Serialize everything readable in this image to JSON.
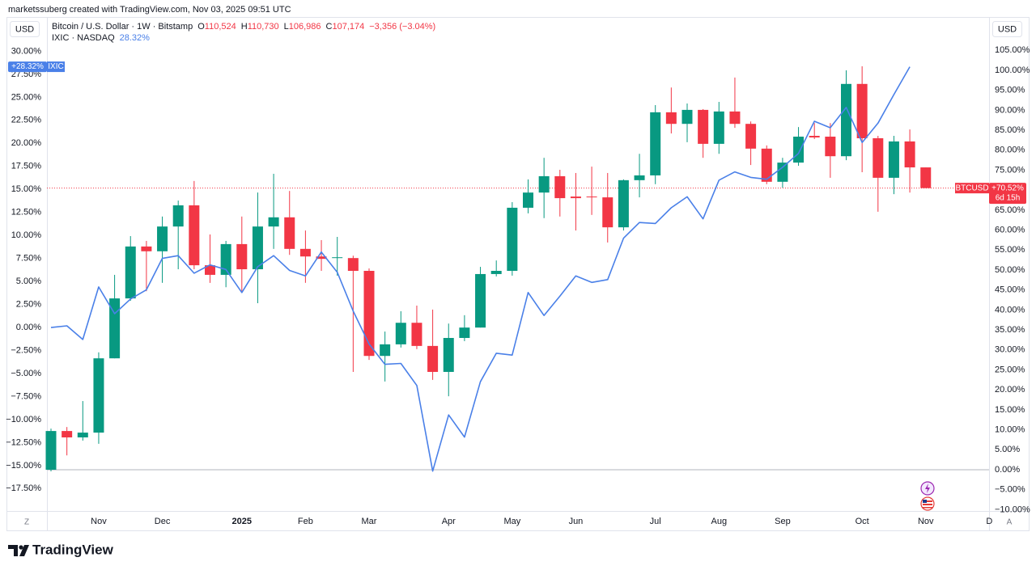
{
  "header": "marketssuberg created with TradingView.com, Nov 03, 2025 09:51 UTC",
  "watermark": "TradingView",
  "chart_data": {
    "type": "candlestick",
    "left_scale_label": "USD",
    "right_scale_label": "USD",
    "corner_left": "Z",
    "corner_right": "A",
    "grid": false,
    "categories": [
      null,
      null,
      null,
      "Nov",
      null,
      null,
      null,
      "Dec",
      null,
      null,
      null,
      null,
      "2025",
      null,
      null,
      null,
      "Feb",
      null,
      null,
      null,
      "Mar",
      null,
      null,
      null,
      null,
      "Apr",
      null,
      null,
      null,
      "May",
      null,
      null,
      null,
      "Jun",
      null,
      null,
      null,
      null,
      "Jul",
      null,
      null,
      null,
      "Aug",
      null,
      null,
      null,
      "Sep",
      null,
      null,
      null,
      null,
      "Oct",
      null,
      null,
      null,
      "Nov",
      null,
      null,
      null,
      "D"
    ],
    "ohlc": {
      "name": "Bitcoin / U.S. Dollar · 1W · Bitstamp",
      "axis": "y2",
      "up_color": "#089981",
      "down_color": "#f23645",
      "legend_fields": [
        {
          "key": "O",
          "value": "110,524"
        },
        {
          "key": "H",
          "value": "110,730"
        },
        {
          "key": "L",
          "value": "106,986"
        },
        {
          "key": "C",
          "value": "107,174"
        }
      ],
      "change": "−3,356 (−3.04%)",
      "tag": "BTCUSD",
      "last_label": "+70.52%",
      "countdown": "6d 15h",
      "open": [
        0,
        9.7,
        8.1,
        9.3,
        27.9,
        42.9,
        55.9,
        54.7,
        60.9,
        66.2,
        51.2,
        48.8,
        56.5,
        50.2,
        60.9,
        63.2,
        55.3,
        53.4,
        53.0,
        53.0,
        49.8,
        28.5,
        31.4,
        36.8,
        31.0,
        24.5,
        33.0,
        35.6,
        49.0,
        49.8,
        65.6,
        69.4,
        73.5,
        68.4,
        68.4,
        68.2,
        60.7,
        72.5,
        73.7,
        89.5,
        86.6,
        90.1,
        81.6,
        89.7,
        86.6,
        80.4,
        72.1,
        76.9,
        83.6,
        83.4,
        78.5,
        96.6,
        83.0,
        73.1,
        82.2,
        75.7,
        null,
        null,
        null,
        null
      ],
      "high": [
        10.3,
        10.7,
        17.2,
        29.4,
        48.8,
        58.5,
        57.3,
        63.4,
        67.4,
        72.3,
        58.9,
        57.3,
        63.4,
        69.4,
        74.1,
        69.8,
        59.9,
        57.5,
        58.3,
        53.6,
        50.4,
        34.6,
        39.7,
        41.1,
        40.1,
        36.6,
        38.7,
        50.8,
        52.4,
        67.0,
        72.7,
        78.1,
        75.1,
        74.3,
        75.9,
        74.3,
        72.7,
        79.1,
        91.3,
        95.7,
        91.7,
        90.3,
        92.1,
        98.2,
        87.2,
        81.2,
        78.1,
        85.8,
        86.8,
        86.8,
        100.0,
        101.0,
        83.6,
        83.6,
        85.2,
        75.7,
        null,
        null,
        null,
        null
      ],
      "low": [
        -0.4,
        3.6,
        7.3,
        6.5,
        27.9,
        42.3,
        44.7,
        46.8,
        50.2,
        50.2,
        46.8,
        45.7,
        44.7,
        41.7,
        55.3,
        53.8,
        46.8,
        49.8,
        48.6,
        24.5,
        27.5,
        22.1,
        30.6,
        30.2,
        22.5,
        18.4,
        32.2,
        35.6,
        48.4,
        48.6,
        64.2,
        63.0,
        63.4,
        59.9,
        63.8,
        56.9,
        59.9,
        68.2,
        71.5,
        84.2,
        82.0,
        78.1,
        79.1,
        85.6,
        76.3,
        71.5,
        70.6,
        76.1,
        82.8,
        73.1,
        77.5,
        74.5,
        64.6,
        69.0,
        69.4,
        70.52,
        null,
        null,
        null,
        null
      ],
      "close": [
        9.7,
        8.1,
        9.3,
        27.9,
        42.9,
        55.9,
        54.7,
        60.9,
        66.2,
        51.2,
        48.8,
        56.5,
        50.2,
        60.9,
        63.2,
        55.3,
        53.4,
        52.8,
        53.2,
        49.8,
        28.5,
        31.4,
        36.8,
        31.0,
        24.5,
        33.0,
        35.6,
        49.0,
        49.8,
        65.6,
        69.4,
        73.5,
        68.0,
        68.0,
        68.2,
        60.7,
        72.5,
        73.7,
        89.5,
        86.6,
        90.1,
        81.6,
        89.7,
        86.6,
        80.4,
        72.1,
        76.9,
        83.4,
        83.2,
        78.5,
        96.6,
        83.0,
        73.1,
        82.2,
        75.7,
        70.52,
        null,
        null,
        null,
        null
      ]
    },
    "series": [
      {
        "name": "IXIC · NASDAQ",
        "value_label": "28.32%",
        "tag": "IXIC",
        "last_label": "+28.32%",
        "color": "#4a80e8",
        "axis": "y",
        "values": [
          0,
          0.18,
          -1.3,
          4.4,
          1.5,
          3.1,
          4.1,
          7.5,
          7.8,
          5.9,
          6.8,
          6.3,
          3.8,
          6.6,
          7.8,
          6.2,
          5.6,
          8.2,
          6.0,
          1.8,
          -1.8,
          -4.0,
          -3.9,
          -6.3,
          -15.6,
          -9.5,
          -11.9,
          -5.9,
          -2.8,
          -3.0,
          3.8,
          1.3,
          3.4,
          5.6,
          4.9,
          5.2,
          9.7,
          11.4,
          11.3,
          13.0,
          14.2,
          11.8,
          16.0,
          16.9,
          16.3,
          16.1,
          17.4,
          18.9,
          22.4,
          21.7,
          23.9,
          20.1,
          22.2,
          25.3,
          28.32,
          null,
          null,
          null,
          null,
          null
        ]
      }
    ],
    "ylim": [
      -19.93,
      31.18
    ],
    "yticks": [
      {
        "value": 30,
        "label": "30.00%"
      },
      {
        "value": 27.5,
        "label": "27.50%"
      },
      {
        "value": 25,
        "label": "25.00%"
      },
      {
        "value": 22.5,
        "label": "22.50%"
      },
      {
        "value": 20,
        "label": "20.00%"
      },
      {
        "value": 17.5,
        "label": "17.50%"
      },
      {
        "value": 15,
        "label": "15.00%"
      },
      {
        "value": 12.5,
        "label": "12.50%"
      },
      {
        "value": 10,
        "label": "10.00%"
      },
      {
        "value": 7.5,
        "label": "7.50%"
      },
      {
        "value": 5,
        "label": "5.00%"
      },
      {
        "value": 2.5,
        "label": "2.50%"
      },
      {
        "value": 0,
        "label": "0.00%"
      },
      {
        "value": -2.5,
        "label": "−2.50%"
      },
      {
        "value": -5,
        "label": "−5.00%"
      },
      {
        "value": -7.5,
        "label": "−7.50%"
      },
      {
        "value": -10,
        "label": "−10.00%"
      },
      {
        "value": -12.5,
        "label": "−12.50%"
      },
      {
        "value": -15,
        "label": "−15.00%"
      },
      {
        "value": -17.5,
        "label": "−17.50%"
      }
    ],
    "y2lim": [
      -10.32,
      107.49
    ],
    "y2ticks": [
      {
        "value": 105,
        "label": "105.00%"
      },
      {
        "value": 100,
        "label": "100.00%"
      },
      {
        "value": 95,
        "label": "95.00%"
      },
      {
        "value": 90,
        "label": "90.00%"
      },
      {
        "value": 85,
        "label": "85.00%"
      },
      {
        "value": 80,
        "label": "80.00%"
      },
      {
        "value": 75,
        "label": "75.00%"
      },
      {
        "value": 70,
        "label": "70.00%"
      },
      {
        "value": 65,
        "label": "65.00%"
      },
      {
        "value": 60,
        "label": "60.00%"
      },
      {
        "value": 55,
        "label": "55.00%"
      },
      {
        "value": 50,
        "label": "50.00%"
      },
      {
        "value": 45,
        "label": "45.00%"
      },
      {
        "value": 40,
        "label": "40.00%"
      },
      {
        "value": 35,
        "label": "35.00%"
      },
      {
        "value": 30,
        "label": "30.00%"
      },
      {
        "value": 25,
        "label": "25.00%"
      },
      {
        "value": 20,
        "label": "20.00%"
      },
      {
        "value": 15,
        "label": "15.00%"
      },
      {
        "value": 10,
        "label": "10.00%"
      },
      {
        "value": 5,
        "label": "5.00%"
      },
      {
        "value": 0,
        "label": "0.00%"
      },
      {
        "value": -5,
        "label": "−5.00%"
      },
      {
        "value": -10,
        "label": "−10.00%"
      }
    ]
  }
}
